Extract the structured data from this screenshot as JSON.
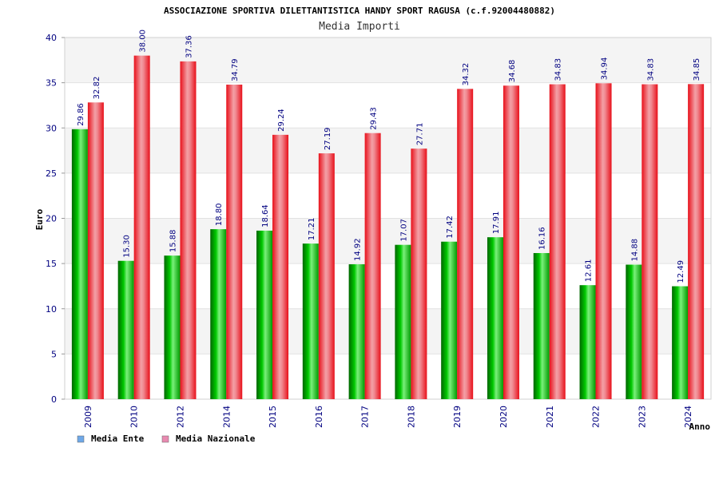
{
  "chart_data": {
    "type": "bar",
    "title": "ASSOCIAZIONE SPORTIVA DILETTANTISTICA HANDY SPORT RAGUSA (c.f.92004480882)",
    "subtitle": "Media Importi",
    "xlabel": "Anno",
    "ylabel": "Euro",
    "ylim": [
      0,
      40
    ],
    "yticks": [
      0,
      5,
      10,
      15,
      20,
      25,
      30,
      35,
      40
    ],
    "grid": true,
    "legend_position": "bottom-left",
    "categories": [
      "2009",
      "2010",
      "2012",
      "2014",
      "2015",
      "2016",
      "2017",
      "2018",
      "2019",
      "2020",
      "2021",
      "2022",
      "2023",
      "2024"
    ],
    "series": [
      {
        "name": "Media Ente",
        "color": "#00b000",
        "legend_color": "#6fa8e8",
        "values": [
          29.86,
          15.3,
          15.88,
          18.8,
          18.64,
          17.21,
          14.92,
          17.07,
          17.42,
          17.91,
          16.16,
          12.61,
          14.88,
          12.49
        ],
        "labels": [
          "29.86",
          "15.30",
          "15.88",
          "18.80",
          "18.64",
          "17.21",
          "14.92",
          "17.07",
          "17.42",
          "17.91",
          "16.16",
          "12.61",
          "14.88",
          "12.49"
        ]
      },
      {
        "name": "Media Nazionale",
        "color": "#e8101a",
        "legend_color": "#e88ab0",
        "values": [
          32.82,
          38.0,
          37.36,
          34.79,
          29.24,
          27.19,
          29.43,
          27.71,
          34.32,
          34.68,
          34.83,
          34.94,
          34.83,
          34.85
        ],
        "labels": [
          "32.82",
          "38.00",
          "37.36",
          "34.79",
          "29.24",
          "27.19",
          "29.43",
          "27.71",
          "34.32",
          "34.68",
          "34.83",
          "34.94",
          "34.83",
          "34.85"
        ]
      }
    ]
  }
}
